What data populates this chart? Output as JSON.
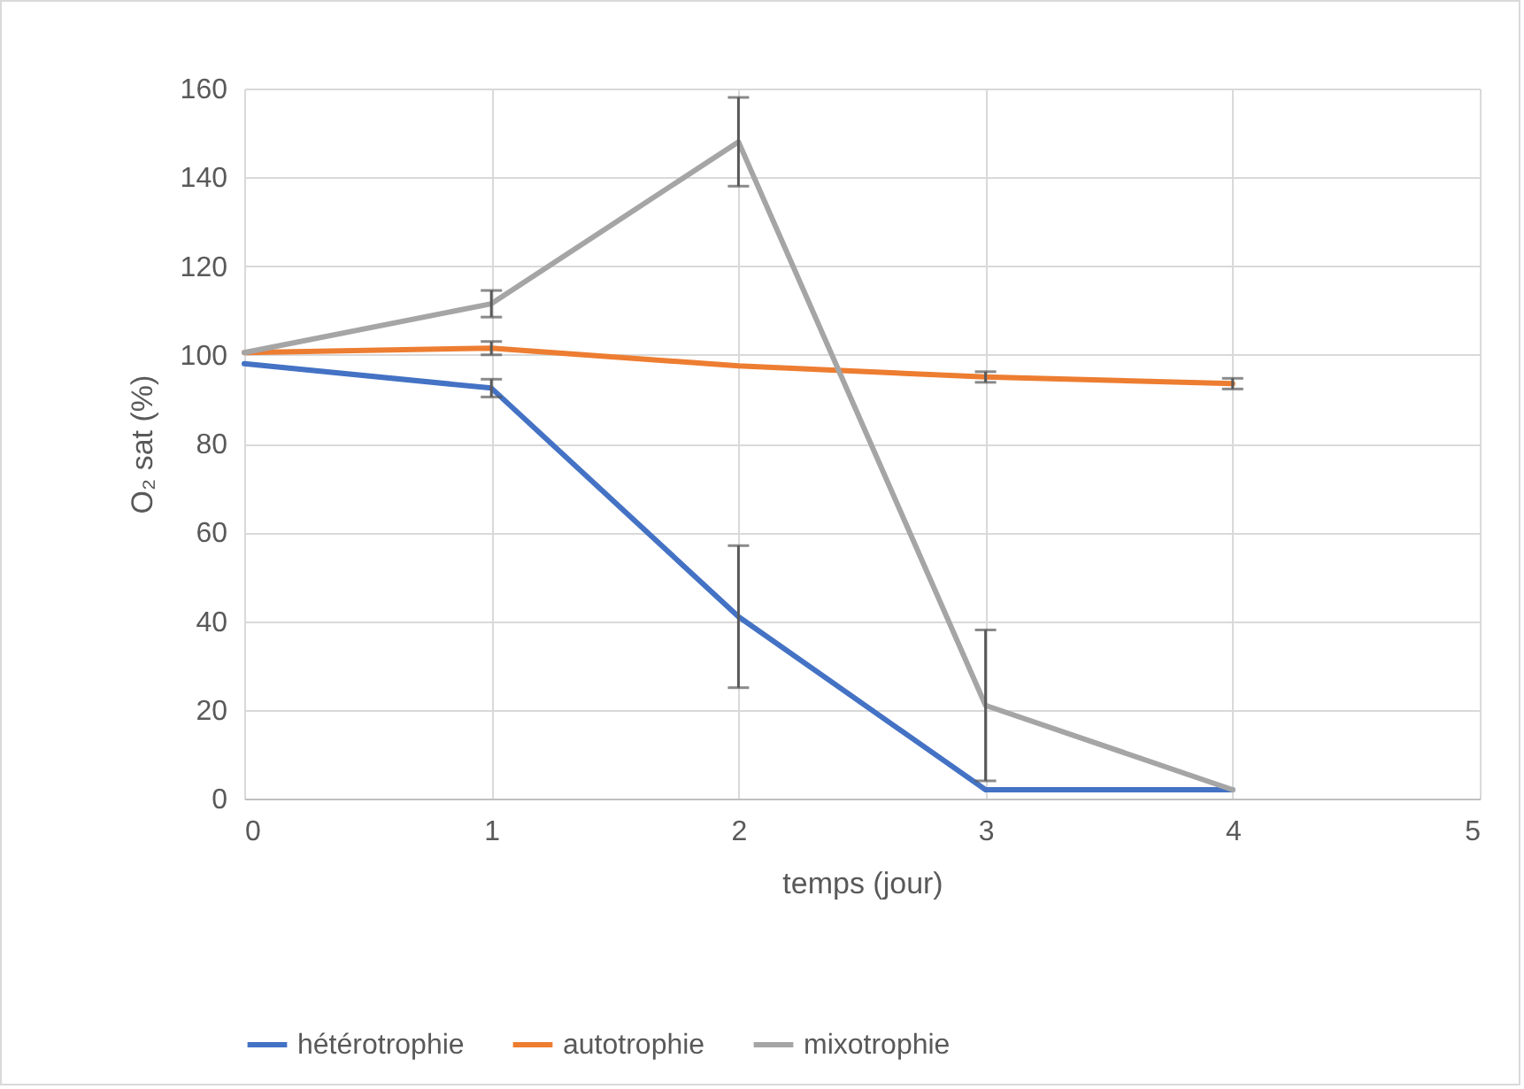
{
  "chart_data": {
    "type": "line",
    "xlabel": "temps (jour)",
    "ylabel": "O₂ sat (%)",
    "x": [
      0,
      1,
      2,
      3,
      4
    ],
    "series": [
      {
        "name": "hétérotrophie",
        "color": "#4472c4",
        "values": [
          98,
          92.5,
          41,
          2,
          2
        ],
        "errors": [
          null,
          2,
          16,
          null,
          null
        ]
      },
      {
        "name": "autotrophie",
        "color": "#ed7d31",
        "values": [
          100.5,
          101.5,
          97.5,
          95,
          93.5
        ],
        "errors": [
          null,
          1.5,
          null,
          1.2,
          1.2
        ]
      },
      {
        "name": "mixotrophie",
        "color": "#a5a5a5",
        "values": [
          100.5,
          111.5,
          148,
          21,
          2
        ],
        "errors": [
          null,
          3,
          10,
          17,
          null
        ]
      }
    ],
    "xlim": [
      0,
      5
    ],
    "xticks": [
      0,
      1,
      2,
      3,
      4,
      5
    ],
    "ylim": [
      0,
      160
    ],
    "yticks": [
      0,
      20,
      40,
      60,
      80,
      100,
      120,
      140,
      160
    ],
    "grid": true,
    "legend": "bottom",
    "marker": "none",
    "line_style": "solid"
  }
}
